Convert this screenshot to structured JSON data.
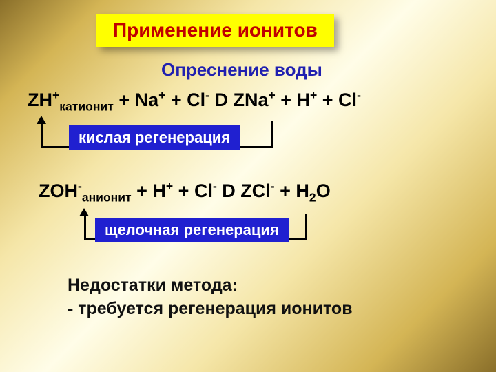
{
  "title": "Применение ионитов",
  "subtitle": "Опреснение воды",
  "equation1": {
    "zh": "ZH",
    "zh_sup": "+",
    "zh_sub": "катионит",
    "plus1": " + Na",
    "na_sup": "+",
    "plus2": " + Cl",
    "cl_sup": "-",
    "gap": "  D ZNa",
    "zna_sup": "+",
    "plus3": " + H",
    "h_sup": "+",
    "plus4": " + Cl",
    "cl2_sup": "-"
  },
  "regen1_label": "кислая регенерация",
  "equation2": {
    "zoh": "ZOH",
    "zoh_sup": "-",
    "zoh_sub": "анионит",
    "plus1": "  + H",
    "h_sup": "+",
    "space": " ",
    "plus2": "+ Cl",
    "cl_sup": "-",
    "gap": " D ZCl",
    "zcl_sup": "-",
    "plus3": " + H",
    "h2_sub": "2",
    "o": "O"
  },
  "regen2_label": "щелочная регенерация",
  "drawbacks_heading": "Недостатки метода:",
  "drawbacks_line1": "- требуется регенерация ионитов",
  "colors": {
    "title_bg": "#ffff00",
    "title_text": "#c00000",
    "subtitle_text": "#2020b0",
    "regen_bg": "#2020d0",
    "regen_text": "#ffffff",
    "body_text": "#000000"
  }
}
